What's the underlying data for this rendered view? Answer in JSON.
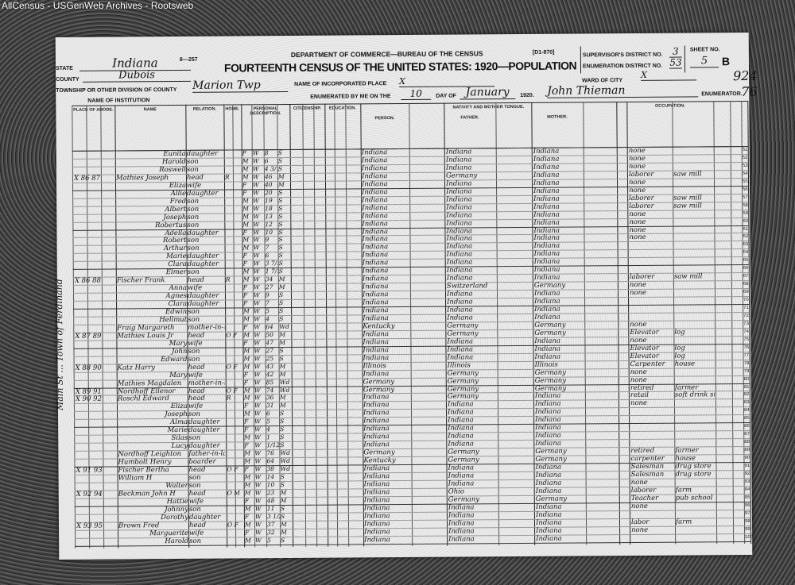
{
  "watermark": "AllCensus - USGenWeb Archives - Rootsweb",
  "header": {
    "form_no": "8—257",
    "form_code": "[D1-870]",
    "department": "DEPARTMENT OF COMMERCE—BUREAU OF THE CENSUS",
    "title": "FOURTEENTH CENSUS OF THE UNITED STATES: 1920—POPULATION",
    "state_label": "STATE",
    "state": "Indiana",
    "county_label": "COUNTY",
    "county": "Dubois",
    "township_label": "TOWNSHIP OR OTHER DIVISION OF COUNTY",
    "township": "Marion Twp",
    "institution_label": "NAME OF INSTITUTION",
    "place_label": "NAME OF INCORPORATED PLACE",
    "place": "X",
    "enumerated_label": "ENUMERATED BY ME ON THE",
    "enumerated_day": "10",
    "day_of_label": "DAY OF",
    "enumerated_month": "January",
    "year": "1920.",
    "supervisor_label": "SUPERVISOR'S DISTRICT NO.",
    "supervisor_district": "3",
    "enumeration_label": "ENUMERATION DISTRICT NO.",
    "enumeration_district": "53",
    "sheet_label": "SHEET NO.",
    "sheet_no": "5",
    "sheet_side": "B",
    "ward_label": "WARD OF CITY",
    "ward": "X",
    "enumerator": "John Thieman",
    "enumerator_label": "ENUMERATOR.",
    "stamp_top": "924",
    "stamp_bottom": "76"
  },
  "column_headers": {
    "abode": "PLACE OF ABODE.",
    "name": "NAME",
    "relation": "RELATION.",
    "home": "HOME.",
    "personal": "PERSONAL DESCRIPTION.",
    "citizenship": "CITIZENSHIP.",
    "education": "EDUCATION.",
    "nativity": "NATIVITY AND MOTHER TONGUE.",
    "person": "PERSON.",
    "father": "FATHER.",
    "mother": "MOTHER.",
    "occupation": "OCCUPATION."
  },
  "margin_note": "Main St ... Town of Ferdinand",
  "rows": [
    [
      "51",
      "",
      "Eunita",
      "daughter",
      "",
      "F",
      "W",
      "8",
      "S",
      "Indiana",
      "Indiana",
      "Indiana",
      "none",
      ""
    ],
    [
      "52",
      "",
      "Harold",
      "son",
      "",
      "M",
      "W",
      "6",
      "S",
      "Indiana",
      "Indiana",
      "Indiana",
      "none",
      ""
    ],
    [
      "53",
      "",
      "Roswell",
      "son",
      "",
      "M",
      "W",
      "4 3/12",
      "S",
      "Indiana",
      "Indiana",
      "Indiana",
      "none",
      ""
    ],
    [
      "54",
      "X 86 87",
      "Mathies Joseph",
      "head",
      "R",
      "M",
      "W",
      "46",
      "M",
      "Indiana",
      "Germany",
      "Indiana",
      "laborer",
      "saw mill"
    ],
    [
      "55",
      "",
      "Eliza",
      "wife",
      "",
      "F",
      "W",
      "40",
      "M",
      "Indiana",
      "Indiana",
      "Indiana",
      "none",
      ""
    ],
    [
      "56",
      "",
      "Allie",
      "daughter",
      "",
      "F",
      "W",
      "20",
      "S",
      "Indiana",
      "Indiana",
      "Indiana",
      "none",
      ""
    ],
    [
      "57",
      "",
      "Fred",
      "son",
      "",
      "M",
      "W",
      "19",
      "S",
      "Indiana",
      "Indiana",
      "Indiana",
      "laborer",
      "saw mill"
    ],
    [
      "58",
      "",
      "Albert",
      "son",
      "",
      "M",
      "W",
      "18",
      "S",
      "Indiana",
      "Indiana",
      "Indiana",
      "laborer",
      "saw mill"
    ],
    [
      "59",
      "",
      "Joseph",
      "son",
      "",
      "M",
      "W",
      "13",
      "S",
      "Indiana",
      "Indiana",
      "Indiana",
      "none",
      ""
    ],
    [
      "60",
      "",
      "Robertus",
      "son",
      "",
      "M",
      "W",
      "12",
      "S",
      "Indiana",
      "Indiana",
      "Indiana",
      "none",
      ""
    ],
    [
      "61",
      "",
      "Adella",
      "daughter",
      "",
      "F",
      "W",
      "10",
      "S",
      "Indiana",
      "Indiana",
      "Indiana",
      "none",
      ""
    ],
    [
      "62",
      "",
      "Robert",
      "son",
      "",
      "M",
      "W",
      "9",
      "S",
      "Indiana",
      "Indiana",
      "Indiana",
      "none",
      ""
    ],
    [
      "63",
      "",
      "Arthur",
      "son",
      "",
      "M",
      "W",
      "7",
      "S",
      "Indiana",
      "Indiana",
      "Indiana",
      "",
      ""
    ],
    [
      "64",
      "",
      "Marie",
      "daughter",
      "",
      "F",
      "W",
      "6",
      "S",
      "Indiana",
      "Indiana",
      "Indiana",
      "",
      ""
    ],
    [
      "65",
      "",
      "Clara",
      "daughter",
      "",
      "F",
      "W",
      "3 7/12",
      "S",
      "Indiana",
      "Indiana",
      "Indiana",
      "",
      ""
    ],
    [
      "66",
      "",
      "Elmer",
      "son",
      "",
      "M",
      "W",
      "1 7/12",
      "S",
      "Indiana",
      "Indiana",
      "Indiana",
      "",
      ""
    ],
    [
      "67",
      "X 86 88",
      "Fischer Frank",
      "head",
      "R",
      "M",
      "W",
      "34",
      "M",
      "Indiana",
      "Indiana",
      "Indiana",
      "laborer",
      "saw mill"
    ],
    [
      "68",
      "",
      "Anna",
      "wife",
      "",
      "F",
      "W",
      "27",
      "M",
      "Indiana",
      "Switzerland",
      "Germany",
      "none",
      ""
    ],
    [
      "69",
      "",
      "Agnes",
      "daughter",
      "",
      "F",
      "W",
      "9",
      "S",
      "Indiana",
      "Indiana",
      "Indiana",
      "none",
      ""
    ],
    [
      "70",
      "",
      "Clara",
      "daughter",
      "",
      "F",
      "W",
      "7",
      "S",
      "Indiana",
      "Indiana",
      "Indiana",
      "",
      ""
    ],
    [
      "71",
      "",
      "Edwin",
      "son",
      "",
      "M",
      "W",
      "5",
      "S",
      "Indiana",
      "Indiana",
      "Indiana",
      "",
      ""
    ],
    [
      "72",
      "",
      "Hellmut",
      "son",
      "",
      "M",
      "W",
      "4",
      "S",
      "Indiana",
      "Indiana",
      "Indiana",
      "",
      ""
    ],
    [
      "73",
      "",
      "Fraig Margareth",
      "mother-in-law",
      "",
      "F",
      "W",
      "64",
      "Wd",
      "Kentucky",
      "Germany",
      "Germany",
      "none",
      ""
    ],
    [
      "74",
      "X 87 89",
      "Mathies Louis Jr",
      "head",
      "O F",
      "M",
      "W",
      "50",
      "M",
      "Indiana",
      "Germany",
      "Germany",
      "Elevator",
      "log"
    ],
    [
      "75",
      "",
      "Mary",
      "wife",
      "",
      "F",
      "W",
      "47",
      "M",
      "Indiana",
      "Indiana",
      "Indiana",
      "none",
      ""
    ],
    [
      "76",
      "",
      "John",
      "son",
      "",
      "M",
      "W",
      "27",
      "S",
      "Indiana",
      "Indiana",
      "Indiana",
      "Elevator",
      "log"
    ],
    [
      "77",
      "",
      "Edward",
      "son",
      "",
      "M",
      "W",
      "25",
      "S",
      "Indiana",
      "Indiana",
      "Indiana",
      "Elevator",
      "log"
    ],
    [
      "78",
      "X 88 90",
      "Katz Harry",
      "head",
      "O F",
      "M",
      "W",
      "43",
      "M",
      "Illinois",
      "Illinois",
      "Illinois",
      "Carpenter",
      "house"
    ],
    [
      "79",
      "",
      "Mary",
      "wife",
      "",
      "F",
      "W",
      "42",
      "M",
      "Indiana",
      "Germany",
      "Germany",
      "none",
      ""
    ],
    [
      "80",
      "",
      "Mathies Magdalen",
      "mother-in-law",
      "",
      "F",
      "W",
      "85",
      "Wd",
      "Germany",
      "Germany",
      "Germany",
      "none",
      ""
    ],
    [
      "81",
      "X 89 91",
      "Nordhoff Ellenor",
      "head",
      "O F",
      "M",
      "W",
      "74",
      "Wd",
      "Germany",
      "Germany",
      "Germany",
      "retired",
      "farmer"
    ],
    [
      "82",
      "X 90 92",
      "Roschl Edward",
      "head",
      "R",
      "M",
      "W",
      "36",
      "M",
      "Indiana",
      "Germany",
      "Indiana",
      "retail",
      "soft drink stand"
    ],
    [
      "83",
      "",
      "Eliza",
      "wife",
      "",
      "F",
      "W",
      "31",
      "M",
      "Indiana",
      "Indiana",
      "Indiana",
      "none",
      ""
    ],
    [
      "84",
      "",
      "Joseph",
      "son",
      "",
      "M",
      "W",
      "6",
      "S",
      "Indiana",
      "Indiana",
      "Indiana",
      "",
      ""
    ],
    [
      "85",
      "",
      "Alma",
      "daughter",
      "",
      "F",
      "W",
      "5",
      "S",
      "Indiana",
      "Indiana",
      "Indiana",
      "",
      ""
    ],
    [
      "86",
      "",
      "Marie",
      "daughter",
      "",
      "F",
      "W",
      "4",
      "S",
      "Indiana",
      "Indiana",
      "Indiana",
      "",
      ""
    ],
    [
      "87",
      "",
      "Silas",
      "son",
      "",
      "M",
      "W",
      "1",
      "S",
      "Indiana",
      "Indiana",
      "Indiana",
      "",
      ""
    ],
    [
      "88",
      "",
      "Lucy",
      "daughter",
      "",
      "F",
      "W",
      "1/12",
      "S",
      "Indiana",
      "Indiana",
      "Indiana",
      "",
      ""
    ],
    [
      "89",
      "",
      "Nordhoff Leighton",
      "father-in-law",
      "",
      "M",
      "W",
      "76",
      "Wd",
      "Germany",
      "Germany",
      "Germany",
      "retired",
      "farmer"
    ],
    [
      "90",
      "",
      "Humbolt Henry",
      "boarder",
      "",
      "M",
      "W",
      "64",
      "Wd",
      "Kentucky",
      "Germany",
      "Germany",
      "carpenter",
      "house"
    ],
    [
      "91",
      "X 91 93",
      "Fischer Bertha",
      "head",
      "O F",
      "F",
      "W",
      "38",
      "Wd",
      "Indiana",
      "Indiana",
      "Indiana",
      "Salesman",
      "drug store"
    ],
    [
      "92",
      "",
      "William H",
      "son",
      "",
      "M",
      "W",
      "14",
      "S",
      "Indiana",
      "Indiana",
      "Indiana",
      "Salesman",
      "drug store"
    ],
    [
      "93",
      "",
      "Walter",
      "son",
      "",
      "M",
      "W",
      "10",
      "S",
      "Indiana",
      "Indiana",
      "Indiana",
      "none",
      ""
    ],
    [
      "94",
      "X 92 94",
      "Beckman John H",
      "head",
      "O M",
      "M",
      "W",
      "23",
      "M",
      "Indiana",
      "Ohio",
      "Indiana",
      "laborer",
      "farm"
    ],
    [
      "95",
      "",
      "Hattie",
      "wife",
      "",
      "F",
      "W",
      "48",
      "M",
      "Indiana",
      "Germany",
      "Germany",
      "Teacher",
      "pub school"
    ],
    [
      "96",
      "",
      "Johnny",
      "son",
      "",
      "M",
      "W",
      "11",
      "S",
      "Indiana",
      "Indiana",
      "Indiana",
      "none",
      ""
    ],
    [
      "97",
      "",
      "Dorothy",
      "daughter",
      "",
      "F",
      "W",
      "3 1/2",
      "S",
      "Indiana",
      "Indiana",
      "Indiana",
      "",
      ""
    ],
    [
      "98",
      "X 93 95",
      "Brown Fred",
      "head",
      "O F",
      "M",
      "W",
      "37",
      "M",
      "Indiana",
      "Indiana",
      "Indiana",
      "labor",
      "farm"
    ],
    [
      "99",
      "",
      "Marguerite",
      "wife",
      "",
      "F",
      "W",
      "32",
      "M",
      "Indiana",
      "Indiana",
      "Indiana",
      "none",
      ""
    ],
    [
      "100",
      "",
      "Harold",
      "son",
      "",
      "M",
      "W",
      "5",
      "S",
      "Indiana",
      "Indiana",
      "Indiana",
      "",
      ""
    ]
  ]
}
